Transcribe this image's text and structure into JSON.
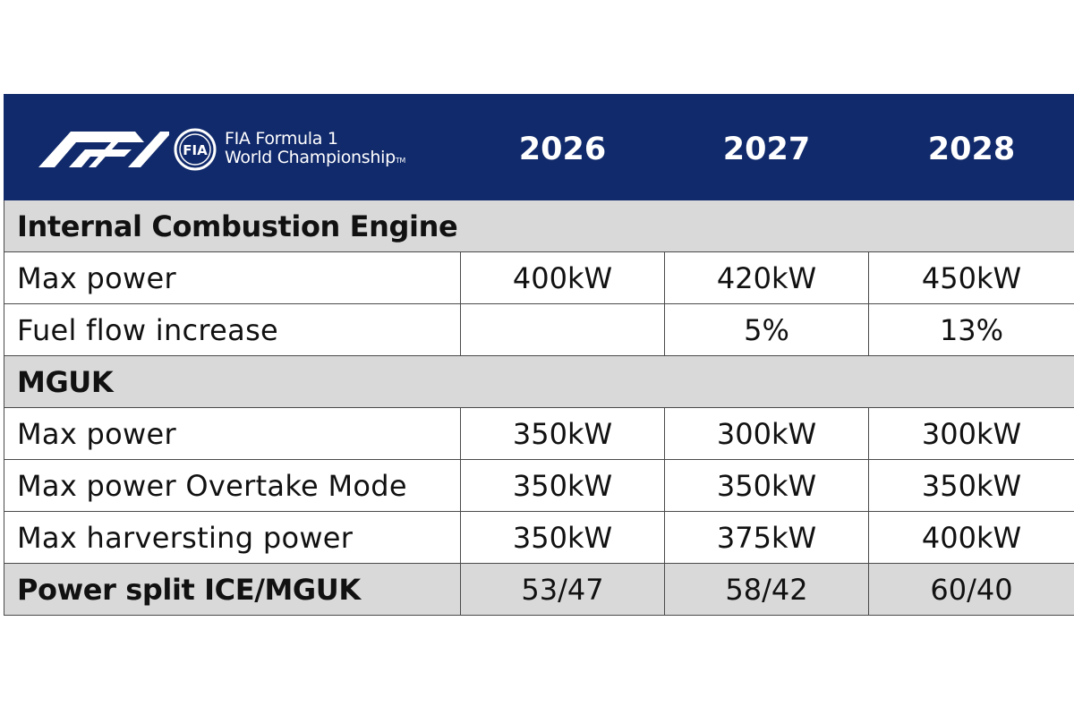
{
  "header": {
    "logo_line1": "FIA Formula 1",
    "logo_line2": "World Championship",
    "logo_tm": "TM",
    "years": [
      "2026",
      "2027",
      "2028"
    ]
  },
  "sections": {
    "ice": {
      "title": "Internal Combustion Engine",
      "rows": [
        {
          "label": "Max power",
          "values": [
            "400kW",
            "420kW",
            "450kW"
          ]
        },
        {
          "label": "Fuel flow increase",
          "values": [
            "",
            "5%",
            "13%"
          ]
        }
      ]
    },
    "mguk": {
      "title": "MGUK",
      "rows": [
        {
          "label": "Max power",
          "values": [
            "350kW",
            "300kW",
            "300kW"
          ]
        },
        {
          "label": "Max power Overtake Mode",
          "values": [
            "350kW",
            "350kW",
            "350kW"
          ]
        },
        {
          "label": "Max harversting power",
          "values": [
            "350kW",
            "375kW",
            "400kW"
          ]
        }
      ]
    }
  },
  "power_split": {
    "label": "Power split ICE/MGUK",
    "values": [
      "53/47",
      "58/42",
      "60/40"
    ]
  },
  "colors": {
    "header_bg": "#112a6b",
    "section_bg": "#d9d9d9",
    "border": "#4a4a4a"
  },
  "icons": [
    "f1-logo-icon",
    "fia-badge-icon"
  ]
}
